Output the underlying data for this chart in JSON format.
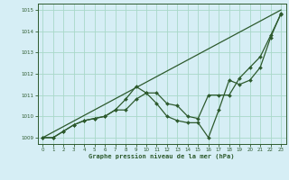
{
  "title": "Graphe pression niveau de la mer (hPa)",
  "bg_color": "#d6eef5",
  "grid_color": "#a8d8c8",
  "line_color": "#2d5a2d",
  "xlim": [
    -0.5,
    23.5
  ],
  "ylim": [
    1008.7,
    1015.3
  ],
  "yticks": [
    1009,
    1010,
    1011,
    1012,
    1013,
    1014,
    1015
  ],
  "xticks": [
    0,
    1,
    2,
    3,
    4,
    5,
    6,
    7,
    8,
    9,
    10,
    11,
    12,
    13,
    14,
    15,
    16,
    17,
    18,
    19,
    20,
    21,
    22,
    23
  ],
  "series1_straight": {
    "x": [
      0,
      23
    ],
    "y": [
      1009.0,
      1015.0
    ]
  },
  "series2": {
    "x": [
      0,
      1,
      2,
      3,
      4,
      5,
      6,
      7,
      8,
      9,
      10,
      11,
      12,
      13,
      14,
      15,
      16,
      17,
      18,
      19,
      20,
      21,
      22,
      23
    ],
    "y": [
      1009.0,
      1009.0,
      1009.3,
      1009.6,
      1009.8,
      1009.9,
      1010.0,
      1010.3,
      1010.8,
      1011.4,
      1011.1,
      1011.1,
      1010.6,
      1010.5,
      1010.0,
      1009.9,
      1011.0,
      1011.0,
      1011.0,
      1011.8,
      1012.3,
      1012.8,
      1013.8,
      1014.8
    ]
  },
  "series3": {
    "x": [
      0,
      1,
      2,
      3,
      4,
      5,
      6,
      7,
      8,
      9,
      10,
      11,
      12,
      13,
      14,
      15,
      16,
      17,
      18,
      19,
      20,
      21,
      22,
      23
    ],
    "y": [
      1009.0,
      1009.0,
      1009.3,
      1009.6,
      1009.8,
      1009.9,
      1010.0,
      1010.3,
      1010.3,
      1010.8,
      1011.1,
      1010.6,
      1010.0,
      1009.8,
      1009.7,
      1009.7,
      1009.0,
      1010.3,
      1011.7,
      1011.5,
      1011.7,
      1012.3,
      1013.7,
      1014.85
    ]
  }
}
